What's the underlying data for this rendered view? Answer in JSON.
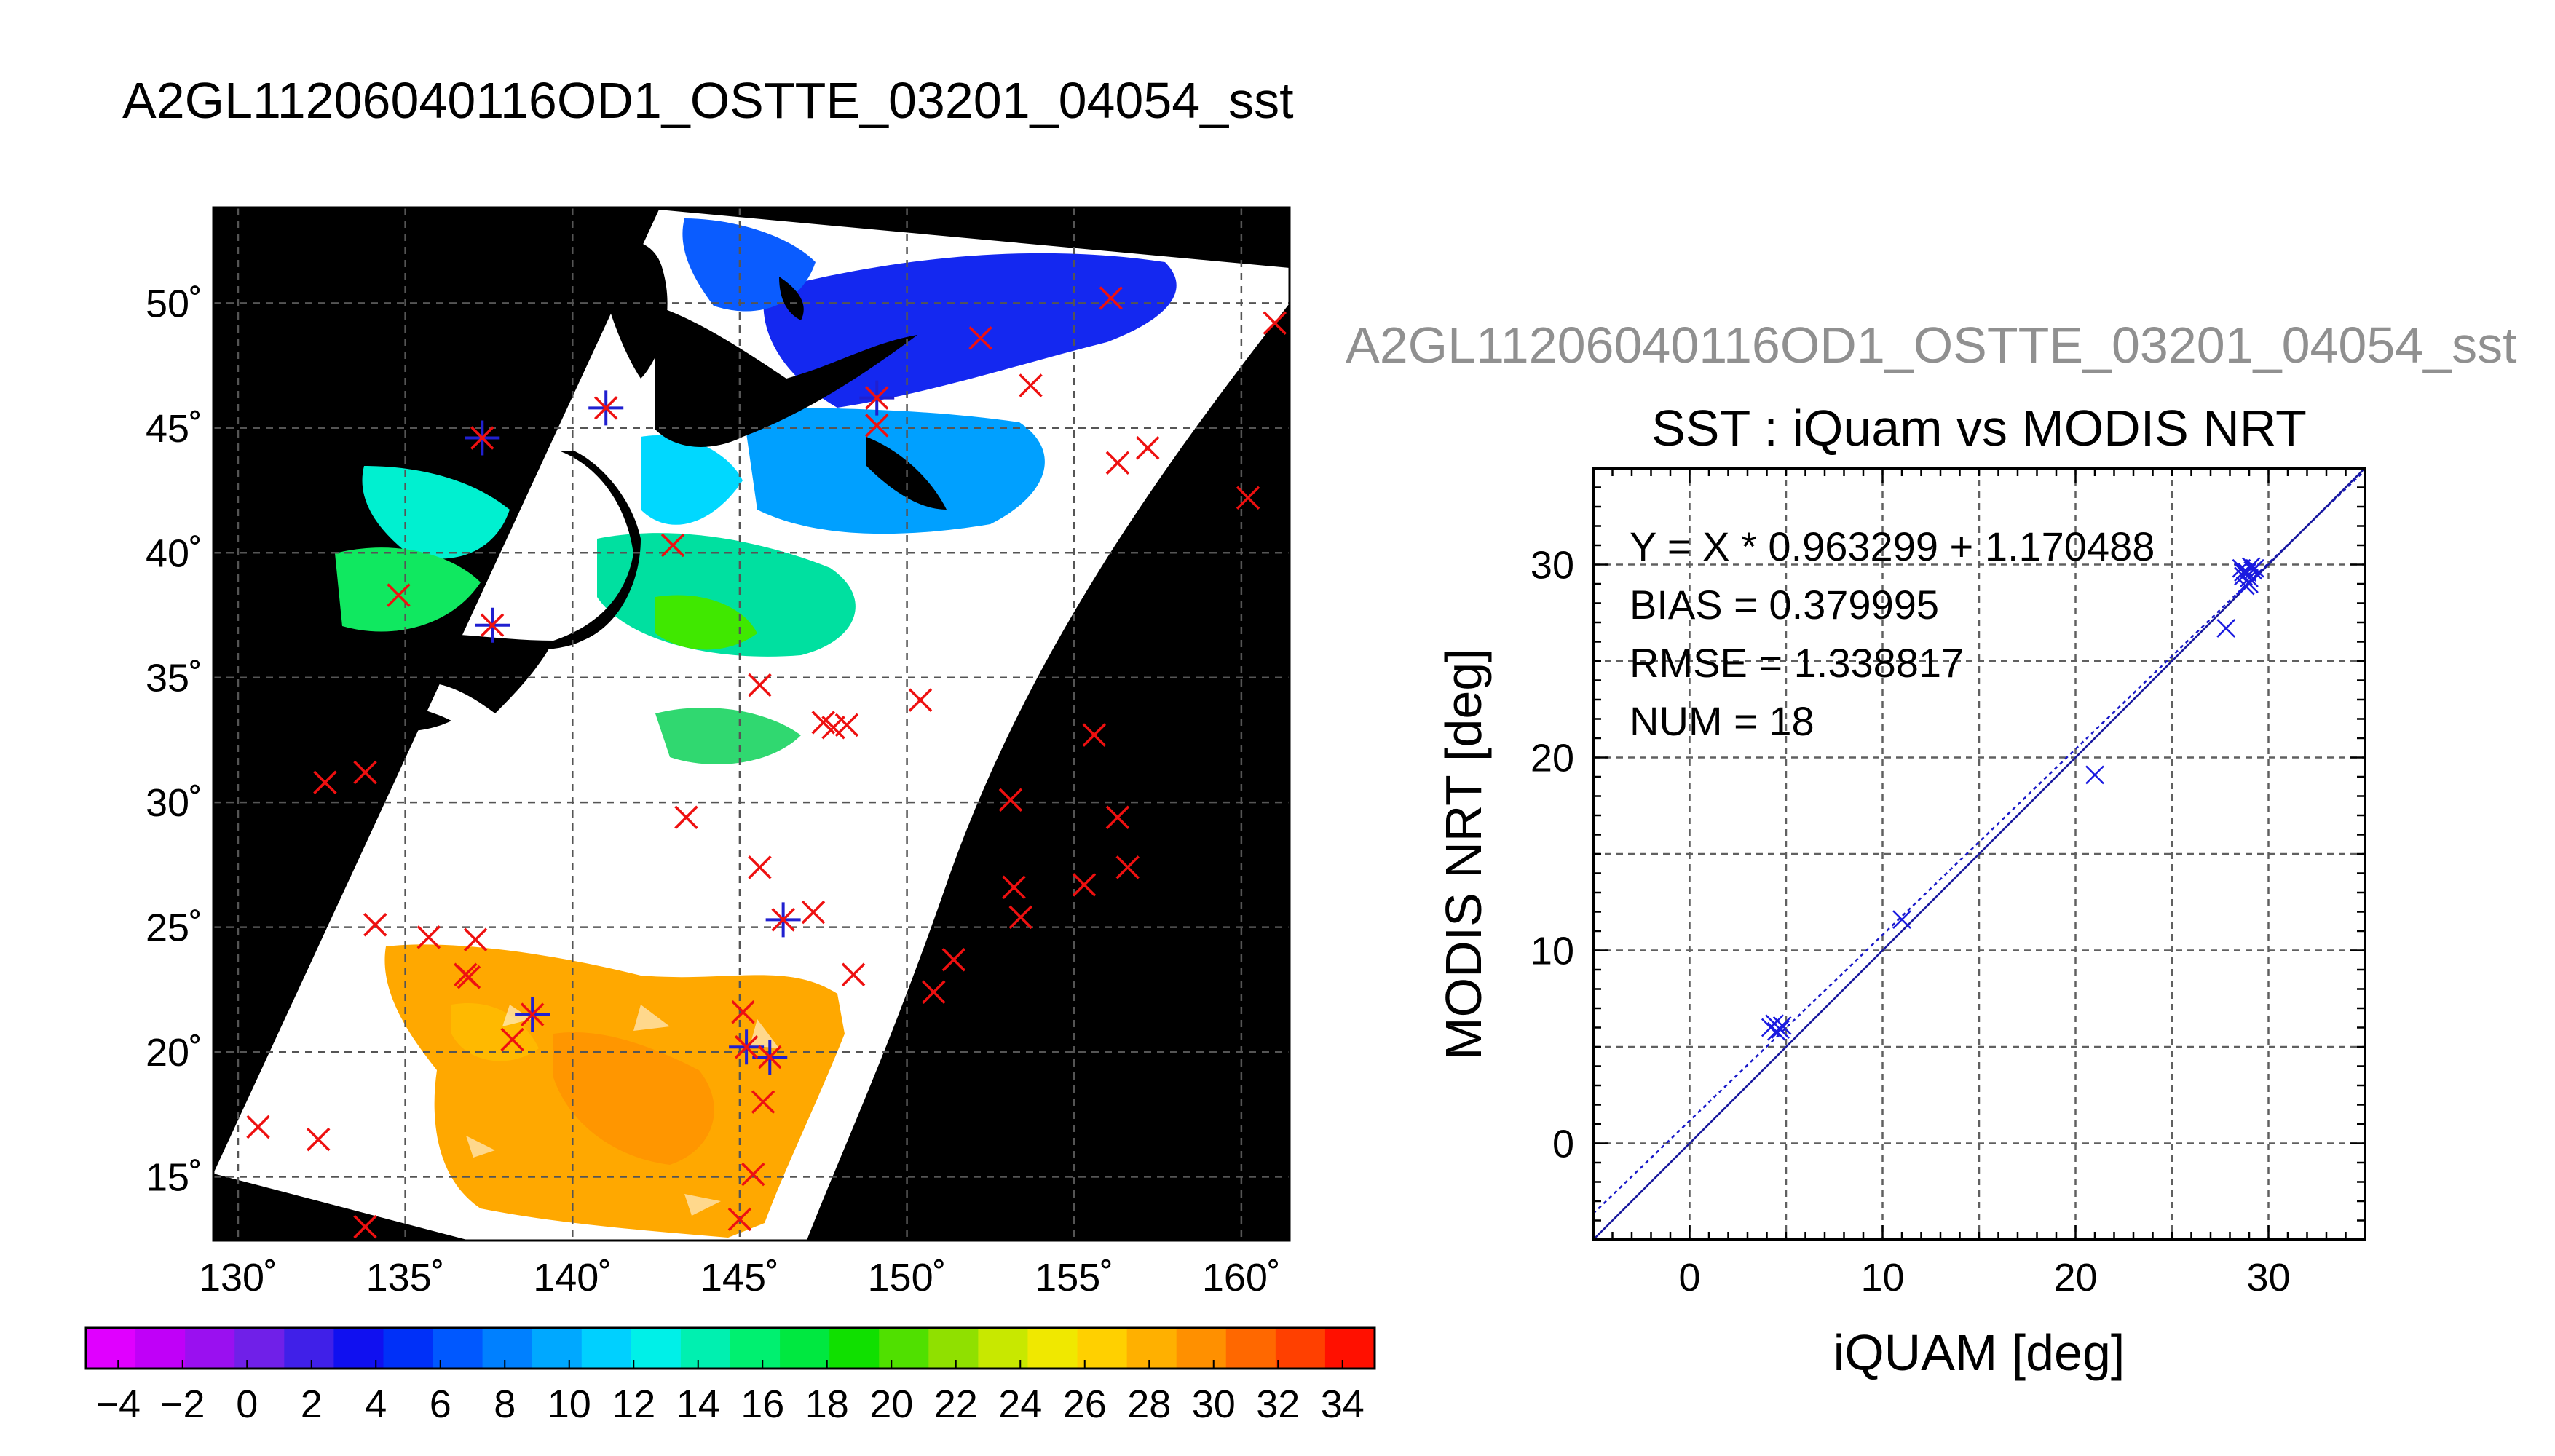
{
  "page_title": "A2GL11206040116OD1_OSTTE_03201_04054_sst",
  "map": {
    "lon_ticks": [
      "130˚",
      "135˚",
      "140˚",
      "145˚",
      "150˚",
      "155˚",
      "160˚"
    ],
    "lat_ticks": [
      "50˚",
      "45˚",
      "40˚",
      "35˚",
      "30˚",
      "25˚",
      "20˚",
      "15˚"
    ],
    "buoys": [
      [
        130.6,
        17.0
      ],
      [
        132.4,
        16.5
      ],
      [
        133.8,
        13.0
      ],
      [
        132.6,
        30.8
      ],
      [
        133.8,
        31.2
      ],
      [
        134.1,
        25.1
      ],
      [
        135.7,
        24.6
      ],
      [
        136.8,
        23.1
      ],
      [
        137.1,
        24.5
      ],
      [
        136.9,
        23.0
      ],
      [
        137.3,
        44.6
      ],
      [
        134.8,
        38.3
      ],
      [
        137.6,
        37.1
      ],
      [
        141.0,
        45.8
      ],
      [
        143.0,
        40.3
      ],
      [
        138.8,
        21.5
      ],
      [
        138.2,
        20.5
      ],
      [
        145.0,
        13.3
      ],
      [
        145.4,
        15.1
      ],
      [
        145.1,
        21.6
      ],
      [
        145.2,
        20.2
      ],
      [
        145.9,
        19.8
      ],
      [
        145.7,
        18.0
      ],
      [
        145.6,
        27.4
      ],
      [
        145.6,
        34.7
      ],
      [
        143.4,
        29.4
      ],
      [
        146.3,
        25.3
      ],
      [
        147.2,
        25.6
      ],
      [
        147.5,
        33.2
      ],
      [
        147.8,
        33.0
      ],
      [
        148.2,
        33.1
      ],
      [
        148.4,
        23.1
      ],
      [
        149.1,
        46.2
      ],
      [
        149.1,
        45.1
      ],
      [
        150.4,
        34.1
      ],
      [
        152.2,
        48.6
      ],
      [
        153.7,
        46.7
      ],
      [
        156.1,
        50.2
      ],
      [
        156.3,
        43.6
      ],
      [
        157.2,
        44.2
      ],
      [
        160.2,
        42.2
      ],
      [
        161.0,
        49.2
      ],
      [
        153.1,
        30.1
      ],
      [
        153.2,
        26.6
      ],
      [
        153.4,
        25.4
      ],
      [
        155.3,
        26.7
      ],
      [
        155.6,
        32.7
      ],
      [
        156.3,
        29.4
      ],
      [
        156.6,
        27.4
      ],
      [
        151.4,
        23.7
      ],
      [
        150.8,
        22.4
      ]
    ],
    "matched": [
      [
        138.8,
        21.5
      ],
      [
        141.0,
        45.8
      ],
      [
        146.3,
        25.3
      ],
      [
        145.2,
        20.2
      ],
      [
        145.9,
        19.8
      ],
      [
        149.1,
        46.2
      ],
      [
        137.3,
        44.6
      ],
      [
        137.6,
        37.1
      ]
    ]
  },
  "colorbar": {
    "labels": [
      "−4",
      "−2",
      "0",
      "2",
      "4",
      "6",
      "8",
      "10",
      "12",
      "14",
      "16",
      "18",
      "20",
      "22",
      "24",
      "26",
      "28",
      "30",
      "32",
      "34"
    ],
    "colors": [
      "#e000ff",
      "#c000f8",
      "#9a10f0",
      "#7020e8",
      "#4020e8",
      "#1010f0",
      "#0030f8",
      "#0058ff",
      "#0080ff",
      "#00a8ff",
      "#00d0ff",
      "#00f0e8",
      "#00f0b0",
      "#00f070",
      "#00e840",
      "#10e000",
      "#50e000",
      "#90e000",
      "#c8e800",
      "#f0e800",
      "#ffd000",
      "#ffb000",
      "#ff9000",
      "#ff6800",
      "#ff4000",
      "#ff1000"
    ]
  },
  "chart_data": {
    "type": "scatter",
    "suptitle": "A2GL11206040116OD1_OSTTE_03201_04054_sst",
    "title": "SST : iQuam vs MODIS NRT",
    "xlabel": "iQUAM [deg]",
    "ylabel": "MODIS NRT [deg]",
    "xlim": [
      -5,
      35
    ],
    "ylim": [
      -5,
      35
    ],
    "xticks": [
      "0",
      "10",
      "20",
      "30"
    ],
    "yticks": [
      "0",
      "10",
      "20",
      "30"
    ],
    "grid": true,
    "fit": {
      "slope": 0.963299,
      "intercept": 1.170488
    },
    "stats": [
      "Y = X * 0.963299 + 1.170488",
      "BIAS = 0.379995",
      "RMSE = 1.338817",
      "NUM = 18"
    ],
    "points": [
      [
        4.2,
        6.0
      ],
      [
        4.5,
        5.8
      ],
      [
        4.7,
        5.9
      ],
      [
        4.8,
        6.1
      ],
      [
        4.4,
        6.2
      ],
      [
        11.0,
        11.6
      ],
      [
        21.0,
        19.1
      ],
      [
        27.8,
        26.7
      ],
      [
        28.6,
        29.8
      ],
      [
        28.7,
        29.4
      ],
      [
        28.9,
        29.6
      ],
      [
        29.0,
        29.0
      ],
      [
        29.1,
        29.9
      ],
      [
        28.8,
        28.9
      ],
      [
        29.2,
        29.7
      ],
      [
        29.0,
        29.3
      ],
      [
        28.7,
        29.6
      ],
      [
        29.3,
        29.8
      ]
    ]
  }
}
